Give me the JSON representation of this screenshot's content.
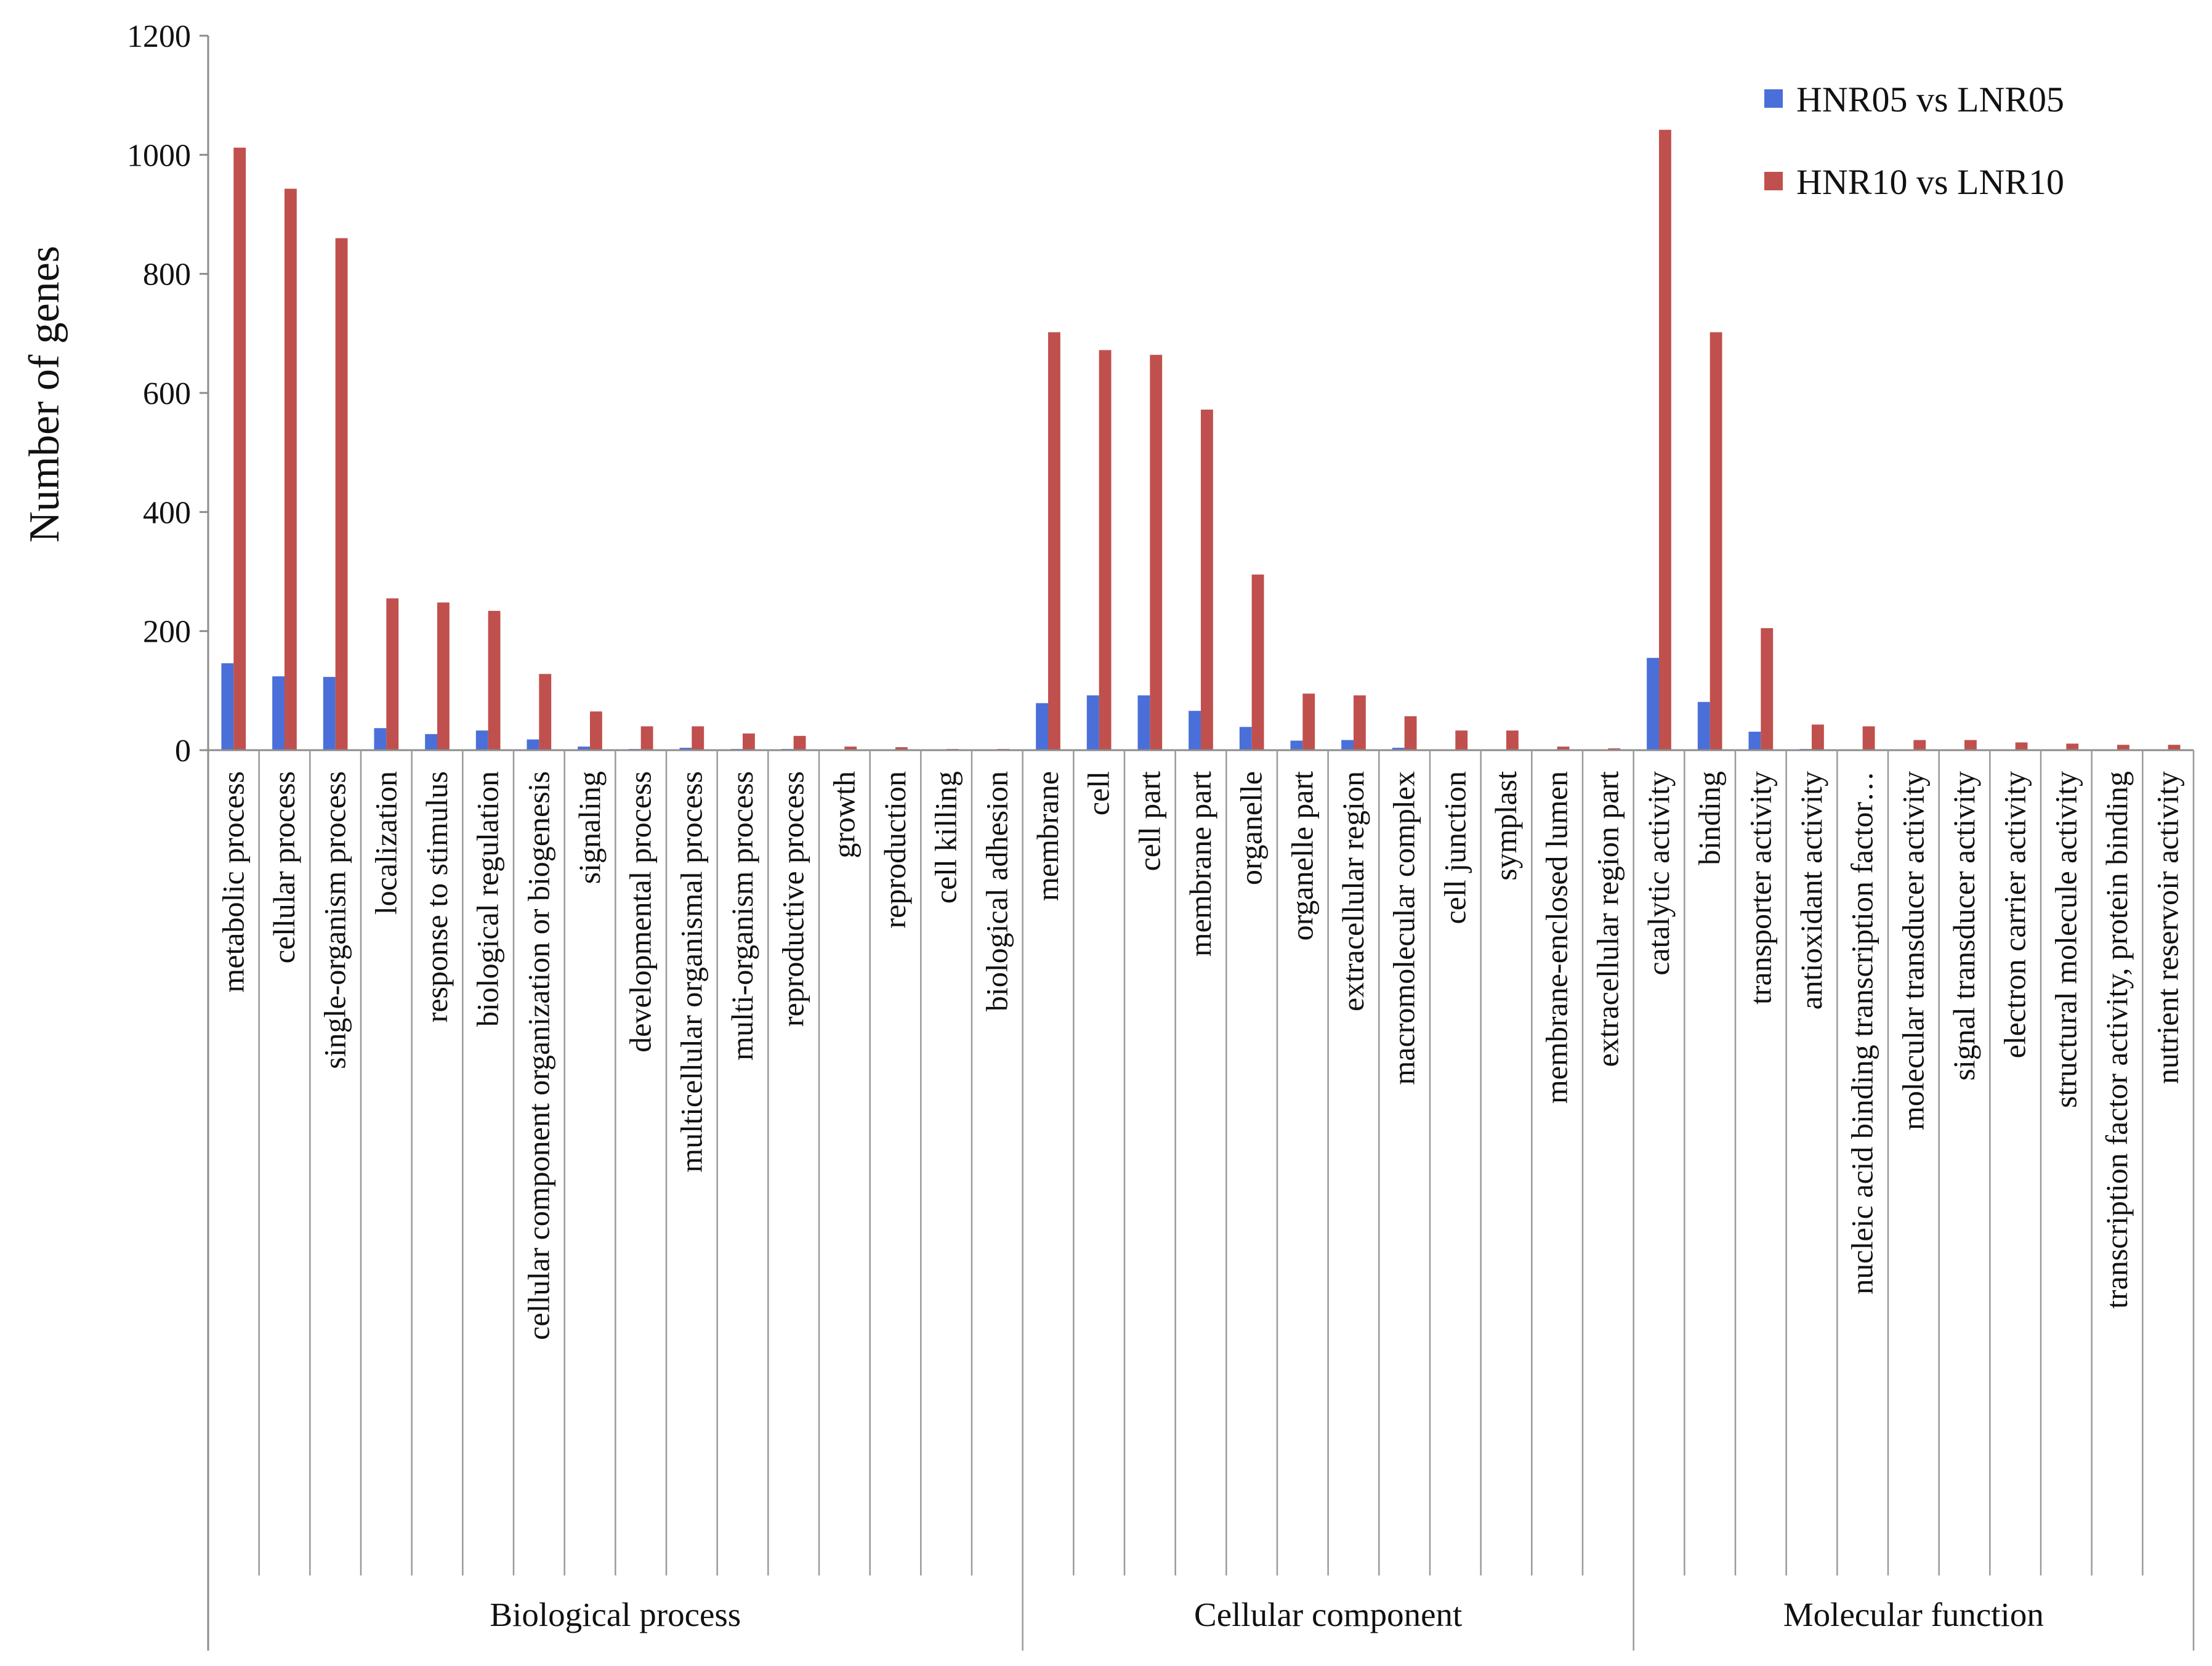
{
  "chart_data": {
    "type": "bar",
    "ylabel": "Number of genes",
    "ylim": [
      0,
      1200
    ],
    "yticks": [
      0,
      200,
      400,
      600,
      800,
      1000,
      1200
    ],
    "legend_position": "top-right",
    "groups": [
      {
        "name": "Biological process",
        "count": 16
      },
      {
        "name": "Cellular component",
        "count": 12
      },
      {
        "name": "Molecular function",
        "count": 11
      }
    ],
    "categories": [
      "metabolic process",
      "cellular process",
      "single-organism process",
      "localization",
      "response to stimulus",
      "biological regulation",
      "cellular component organization or biogenesis",
      "signaling",
      "developmental process",
      "multicellular organismal process",
      "multi-organism process",
      "reproductive process",
      "growth",
      "reproduction",
      "cell killing",
      "biological adhesion",
      "membrane",
      "cell",
      "cell part",
      "membrane part",
      "organelle",
      "organelle part",
      "extracellular region",
      "macromolecular complex",
      "cell junction",
      "symplast",
      "membrane-enclosed lumen",
      "extracellular region part",
      "catalytic activity",
      "binding",
      "transporter activity",
      "antioxidant activity",
      "nucleic acid binding transcription factor…",
      "molecular transducer activity",
      "signal transducer activity",
      "electron carrier activity",
      "structural molecule activity",
      "transcription factor activity, protein binding",
      "nutrient reservoir activity"
    ],
    "series": [
      {
        "name": "HNR05 vs LNR05",
        "color": "#4a6fd8",
        "values": [
          146,
          124,
          123,
          37,
          27,
          33,
          18,
          6,
          2,
          4,
          2,
          2,
          1,
          1,
          0,
          0,
          79,
          92,
          92,
          66,
          39,
          16,
          17,
          4,
          1,
          1,
          0,
          0,
          155,
          81,
          31,
          2,
          1,
          1,
          1,
          1,
          1,
          0,
          0
        ]
      },
      {
        "name": "HNR10 vs LNR10",
        "color": "#c0504d",
        "values": [
          1012,
          943,
          860,
          255,
          248,
          234,
          128,
          65,
          40,
          40,
          28,
          24,
          6,
          5,
          2,
          2,
          702,
          672,
          664,
          572,
          295,
          95,
          92,
          57,
          33,
          33,
          6,
          3,
          1042,
          702,
          205,
          43,
          40,
          17,
          17,
          13,
          11,
          9,
          9
        ]
      }
    ]
  }
}
